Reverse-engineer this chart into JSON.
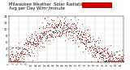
{
  "title": "Milwaukee Weather  Solar Radiation\nAvg per Day W/m²/minute",
  "title_fontsize": 3.8,
  "bg_color": "#ffffff",
  "plot_bg": "#ffffff",
  "dot_color_red": "#ff0000",
  "dot_color_black": "#000000",
  "legend_box_color": "#cc0000",
  "grid_color": "#999999",
  "ylim": [
    0,
    14
  ],
  "yticks": [
    2,
    4,
    6,
    8,
    10,
    12,
    14
  ],
  "seed": 42,
  "n_points": 365,
  "n_vertical_lines": 12
}
